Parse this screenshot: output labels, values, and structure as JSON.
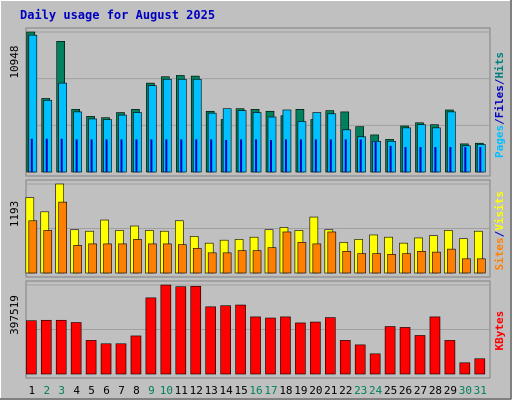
{
  "chart_data": {
    "type": "bar",
    "title": "Daily usage for August 2025",
    "categories": [
      "1",
      "2",
      "3",
      "4",
      "5",
      "6",
      "7",
      "8",
      "9",
      "10",
      "11",
      "12",
      "13",
      "14",
      "15",
      "16",
      "17",
      "18",
      "19",
      "20",
      "21",
      "22",
      "23",
      "24",
      "25",
      "26",
      "27",
      "28",
      "29",
      "30",
      "31"
    ],
    "weekend_days": [
      "2",
      "3",
      "9",
      "10",
      "16",
      "17",
      "23",
      "24",
      "30",
      "31"
    ],
    "panels": [
      {
        "name": "hits_files_pages",
        "max_label": "10948",
        "ylim": [
          0,
          10948
        ],
        "legend": [
          {
            "text": "Pages",
            "color": "#00c0ff"
          },
          {
            "text": "/",
            "color": "#0000c0"
          },
          {
            "text": "Files",
            "color": "#0000c0"
          },
          {
            "text": "/",
            "color": "#0000c0"
          },
          {
            "text": "Hits",
            "color": "#008080"
          }
        ],
        "series": [
          {
            "name": "Hits",
            "color": "#00805c",
            "values": [
              10948,
              5750,
              10220,
              4900,
              4350,
              4250,
              4650,
              4900,
              6950,
              7450,
              7550,
              7500,
              4750,
              4100,
              4950,
              4900,
              4750,
              4400,
              4900,
              4100,
              4800,
              4700,
              3550,
              2900,
              2550,
              3600,
              3850,
              3700,
              4850,
              2200,
              2250
            ]
          },
          {
            "name": "Files",
            "color": "#00c0ff",
            "values": [
              10700,
              5600,
              6950,
              4700,
              4150,
              4100,
              4450,
              4650,
              6750,
              7250,
              7250,
              7250,
              4600,
              4950,
              4800,
              4650,
              4300,
              4850,
              3950,
              4650,
              4550,
              3300,
              2750,
              2400,
              2400,
              3450,
              3700,
              3450,
              4700,
              2050,
              2150
            ]
          },
          {
            "name": "Pages",
            "color": "#0000c0",
            "values": [
              2600,
              2600,
              2600,
              2550,
              2550,
              2550,
              2550,
              2550,
              2550,
              2550,
              2550,
              2550,
              2550,
              2500,
              2550,
              2550,
              2500,
              2550,
              2550,
              2550,
              2550,
              2550,
              2550,
              2350,
              2050,
              1950,
              1950,
              1950,
              1950,
              1950,
              1950
            ]
          }
        ]
      },
      {
        "name": "visits_sites",
        "max_label": "1193",
        "ylim": [
          0,
          1193
        ],
        "legend": [
          {
            "text": "Sites",
            "color": "#ff8000"
          },
          {
            "text": "/",
            "color": "#0000c0"
          },
          {
            "text": "Visits",
            "color": "#ffff00"
          }
        ],
        "series": [
          {
            "name": "Visits",
            "color": "#ffff00",
            "values": [
              1010,
              820,
              1193,
              580,
              560,
              710,
              570,
              630,
              570,
              560,
              700,
              490,
              400,
              440,
              450,
              480,
              580,
              610,
              570,
              750,
              580,
              410,
              450,
              510,
              480,
              400,
              470,
              500,
              570,
              460,
              560
            ]
          },
          {
            "name": "Sites",
            "color": "#ff8000",
            "values": [
              700,
              570,
              950,
              370,
              390,
              390,
              390,
              450,
              390,
              390,
              380,
              330,
              270,
              270,
              300,
              300,
              340,
              550,
              410,
              390,
              550,
              290,
              260,
              260,
              250,
              260,
              290,
              280,
              320,
              190,
              190
            ]
          }
        ]
      },
      {
        "name": "kbytes",
        "max_label": "397519",
        "ylim": [
          0,
          397519
        ],
        "legend": [
          {
            "text": "KBytes",
            "color": "#ff0000"
          }
        ],
        "series": [
          {
            "name": "KBytes",
            "color": "#ff0000",
            "values": [
              238000,
              240000,
              240000,
              230000,
              150000,
              135000,
              135000,
              170000,
              340000,
              397519,
              390000,
              392000,
              300000,
              305000,
              308000,
              255000,
              250000,
              255000,
              228000,
              232000,
              252000,
              150000,
              130000,
              90000,
              212000,
              208000,
              172000,
              255000,
              150000,
              50000,
              68000
            ]
          }
        ]
      }
    ]
  }
}
